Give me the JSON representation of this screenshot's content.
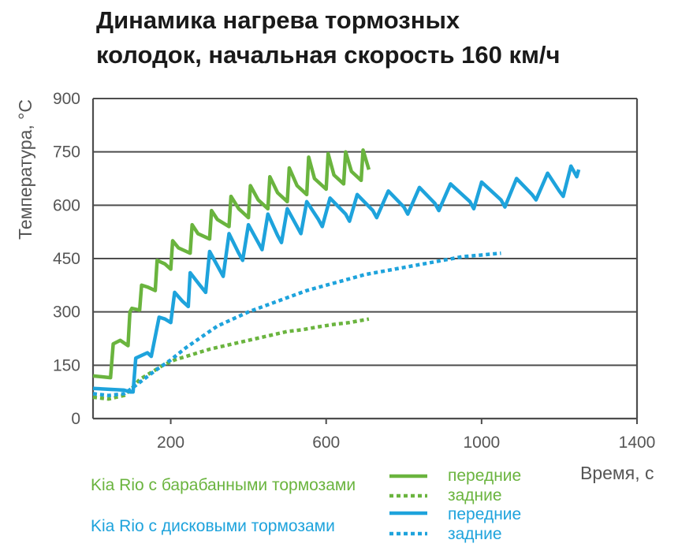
{
  "title_line1": "Динамика нагрева тормозных",
  "title_line2": "колодок, начальная скорость 160 км/ч",
  "colors": {
    "green": "#6ab43e",
    "blue": "#1ea3dc",
    "grid": "#4d4d4d",
    "text": "#555555"
  },
  "chart_data": {
    "type": "line",
    "title": "Динамика нагрева тормозных колодок, начальная скорость 160 км/ч",
    "xlabel": "Время, с",
    "ylabel": "Температура, °С",
    "xlim": [
      0,
      1400
    ],
    "ylim": [
      0,
      900
    ],
    "x_ticks": [
      200,
      600,
      1000,
      1400
    ],
    "x_tick_labels": [
      "200",
      "600",
      "1000",
      "1400"
    ],
    "y_ticks": [
      0,
      150,
      300,
      450,
      600,
      750,
      900
    ],
    "y_tick_labels": [
      "0",
      "150",
      "300",
      "450",
      "600",
      "750",
      "900"
    ],
    "grid": "horizontal",
    "legend_position": "bottom",
    "series": [
      {
        "name": "передние",
        "group": "Kia Rio с барабанными тормозами",
        "color": "#6ab43e",
        "style": "solid",
        "x": [
          0,
          45,
          52,
          70,
          90,
          95,
          100,
          120,
          125,
          140,
          160,
          165,
          185,
          200,
          205,
          220,
          250,
          255,
          270,
          300,
          305,
          320,
          350,
          355,
          375,
          400,
          405,
          425,
          450,
          455,
          475,
          500,
          505,
          525,
          550,
          555,
          570,
          600,
          605,
          620,
          645,
          650,
          665,
          690,
          695,
          710
        ],
        "y": [
          120,
          115,
          210,
          220,
          205,
          300,
          310,
          305,
          375,
          370,
          360,
          445,
          435,
          420,
          500,
          480,
          465,
          545,
          520,
          505,
          585,
          560,
          540,
          625,
          590,
          565,
          655,
          615,
          590,
          680,
          635,
          610,
          705,
          655,
          630,
          735,
          675,
          645,
          745,
          685,
          660,
          750,
          695,
          670,
          755,
          700
        ]
      },
      {
        "name": "задние",
        "group": "Kia Rio с барабанными тормозами",
        "color": "#6ab43e",
        "style": "dotted",
        "x": [
          0,
          40,
          80,
          100,
          120,
          150,
          180,
          210,
          240,
          270,
          300,
          340,
          380,
          420,
          460,
          500,
          540,
          580,
          620,
          660,
          700,
          710
        ],
        "y": [
          60,
          55,
          65,
          85,
          110,
          130,
          150,
          165,
          175,
          185,
          195,
          205,
          215,
          225,
          235,
          245,
          250,
          258,
          265,
          270,
          278,
          280
        ]
      },
      {
        "name": "передние",
        "group": "Kia Rio с дисковыми тормозами",
        "color": "#1ea3dc",
        "style": "solid",
        "x": [
          0,
          80,
          95,
          103,
          110,
          140,
          150,
          170,
          185,
          200,
          210,
          230,
          245,
          250,
          275,
          290,
          300,
          325,
          335,
          350,
          375,
          385,
          400,
          425,
          435,
          450,
          475,
          485,
          500,
          525,
          535,
          550,
          580,
          590,
          610,
          650,
          660,
          680,
          720,
          730,
          760,
          800,
          810,
          840,
          880,
          890,
          920,
          970,
          980,
          1000,
          1050,
          1060,
          1090,
          1130,
          1140,
          1170,
          1200,
          1210,
          1230,
          1245,
          1250
        ],
        "y": [
          85,
          80,
          75,
          75,
          170,
          185,
          175,
          285,
          280,
          270,
          355,
          330,
          315,
          410,
          375,
          355,
          470,
          420,
          400,
          520,
          465,
          445,
          545,
          495,
          475,
          575,
          515,
          495,
          590,
          540,
          520,
          610,
          560,
          540,
          620,
          575,
          555,
          630,
          585,
          565,
          640,
          595,
          575,
          650,
          605,
          585,
          660,
          610,
          590,
          665,
          615,
          595,
          675,
          630,
          615,
          690,
          640,
          625,
          710,
          680,
          700
        ]
      },
      {
        "name": "задние",
        "group": "Kia Rio с дисковыми тормозами",
        "color": "#1ea3dc",
        "style": "dotted",
        "x": [
          0,
          40,
          80,
          100,
          130,
          160,
          200,
          240,
          280,
          320,
          360,
          400,
          450,
          500,
          550,
          600,
          650,
          700,
          750,
          800,
          850,
          900,
          950,
          1000,
          1050
        ],
        "y": [
          70,
          65,
          70,
          85,
          110,
          135,
          165,
          200,
          230,
          260,
          280,
          300,
          320,
          340,
          360,
          375,
          390,
          405,
          415,
          425,
          435,
          445,
          455,
          460,
          465
        ]
      }
    ]
  },
  "legend": {
    "drum_label": "Kia Rio с барабанными тормозами",
    "disc_label": "Kia Rio с дисковыми тормозами",
    "front": "передние",
    "rear": "задние"
  }
}
